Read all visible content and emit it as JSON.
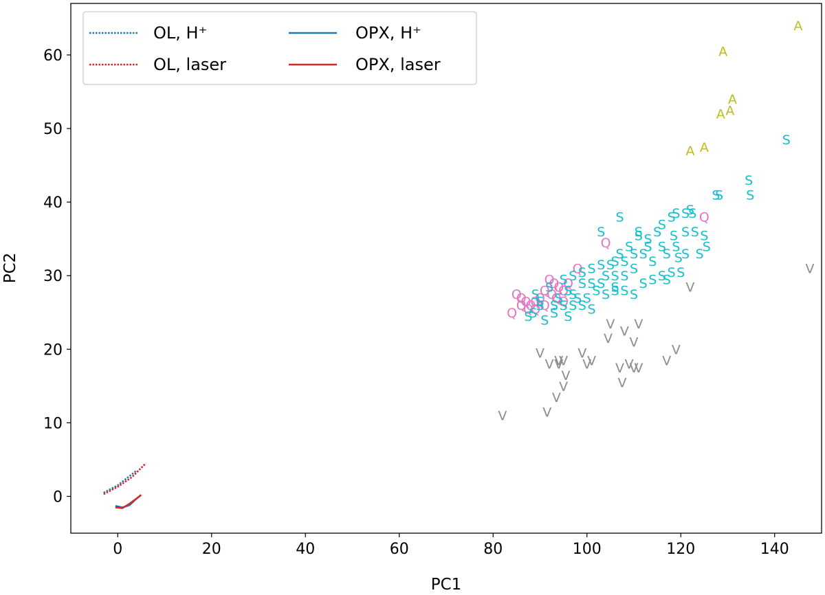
{
  "chart_data": {
    "type": "scatter",
    "title": "",
    "xlabel": "PC1",
    "ylabel": "PC2",
    "xlim": [
      -10,
      150
    ],
    "ylim": [
      -5,
      67
    ],
    "xticks": [
      0,
      20,
      40,
      60,
      80,
      100,
      120,
      140
    ],
    "yticks": [
      0,
      10,
      20,
      30,
      40,
      50,
      60
    ],
    "grid": false,
    "legend": {
      "location": "upper-left",
      "columns": 2,
      "entries": [
        {
          "label": "OL, H⁺",
          "color": "#1f77b4",
          "style": "dotted"
        },
        {
          "label": "OPX, H⁺",
          "color": "#1f77b4",
          "style": "solid"
        },
        {
          "label": "OL, laser",
          "color": "#d62728",
          "style": "dotted"
        },
        {
          "label": "OPX, laser",
          "color": "#d62728",
          "style": "solid"
        }
      ]
    },
    "marker_series": [
      {
        "marker": "A",
        "color": "#bcbd22",
        "points": [
          [
            145,
            64
          ],
          [
            129,
            60.5
          ],
          [
            131,
            54
          ],
          [
            128.5,
            52
          ],
          [
            130.5,
            52.5
          ],
          [
            125,
            47.5
          ],
          [
            122,
            47
          ]
        ]
      },
      {
        "marker": "V",
        "color": "#8c8c8c",
        "points": [
          [
            147.5,
            31
          ],
          [
            122,
            28.5
          ],
          [
            105,
            23.5
          ],
          [
            111,
            23.5
          ],
          [
            108,
            22.5
          ],
          [
            104.5,
            21.5
          ],
          [
            110,
            21
          ],
          [
            119,
            20
          ],
          [
            90,
            19.5
          ],
          [
            99,
            19.5
          ],
          [
            94,
            18.5
          ],
          [
            95,
            18.5
          ],
          [
            101,
            18.5
          ],
          [
            92,
            18
          ],
          [
            94,
            18
          ],
          [
            100,
            18
          ],
          [
            117,
            18.5
          ],
          [
            109,
            18
          ],
          [
            107,
            17.5
          ],
          [
            110,
            17.5
          ],
          [
            111,
            17.5
          ],
          [
            95.5,
            16.5
          ],
          [
            107.5,
            15.5
          ],
          [
            95,
            15
          ],
          [
            93.5,
            13.5
          ],
          [
            82,
            11
          ],
          [
            91.5,
            11.5
          ]
        ]
      },
      {
        "marker": "Q",
        "color": "#e377c2",
        "points": [
          [
            125,
            38
          ],
          [
            104,
            34.5
          ],
          [
            98,
            31
          ],
          [
            92,
            29.5
          ],
          [
            93,
            29
          ],
          [
            94,
            28.5
          ],
          [
            95,
            28
          ],
          [
            96,
            29
          ],
          [
            91,
            28
          ],
          [
            92.5,
            27.5
          ],
          [
            93.5,
            27
          ],
          [
            95,
            26.5
          ],
          [
            85,
            27.5
          ],
          [
            86,
            27
          ],
          [
            87,
            26.5
          ],
          [
            88,
            26
          ],
          [
            89,
            26.5
          ],
          [
            90,
            27
          ],
          [
            86,
            26
          ],
          [
            87.5,
            25.5
          ],
          [
            84,
            25
          ],
          [
            89,
            25.5
          ],
          [
            91,
            26
          ]
        ]
      },
      {
        "marker": "S",
        "color": "#17becf",
        "points": [
          [
            142.5,
            48.5
          ],
          [
            134.5,
            43
          ],
          [
            134.8,
            41
          ],
          [
            127.5,
            41
          ],
          [
            128.2,
            41
          ],
          [
            122,
            39
          ],
          [
            121,
            38.5
          ],
          [
            119,
            38.5
          ],
          [
            122.5,
            38.5
          ],
          [
            118,
            38
          ],
          [
            118.5,
            35.5
          ],
          [
            119,
            34
          ],
          [
            125,
            35.5
          ],
          [
            125.5,
            34
          ],
          [
            124,
            33
          ],
          [
            119.5,
            32.5
          ],
          [
            117,
            33
          ],
          [
            113,
            34
          ],
          [
            115,
            36
          ],
          [
            111,
            36
          ],
          [
            113,
            35
          ],
          [
            116,
            34
          ],
          [
            112,
            33
          ],
          [
            114,
            32
          ],
          [
            110,
            33
          ],
          [
            108,
            32
          ],
          [
            110,
            31
          ],
          [
            106,
            32
          ],
          [
            108,
            30
          ],
          [
            106,
            30
          ],
          [
            104,
            30
          ],
          [
            106,
            28.5
          ],
          [
            103,
            29
          ],
          [
            101,
            29
          ],
          [
            99,
            29
          ],
          [
            102,
            28
          ],
          [
            100,
            27
          ],
          [
            98,
            27
          ],
          [
            96,
            28
          ],
          [
            97,
            26
          ],
          [
            95,
            26
          ],
          [
            93,
            25
          ],
          [
            94,
            27
          ],
          [
            90,
            26
          ],
          [
            88.5,
            25
          ],
          [
            87.5,
            24.5
          ],
          [
            91,
            24
          ],
          [
            90,
            26.5
          ],
          [
            89,
            27.5
          ],
          [
            92,
            28.5
          ],
          [
            95,
            29.5
          ],
          [
            97,
            30
          ],
          [
            99,
            30.5
          ],
          [
            101,
            31
          ],
          [
            103,
            31.5
          ],
          [
            105,
            31.5
          ],
          [
            107,
            33
          ],
          [
            109,
            34
          ],
          [
            111,
            35.5
          ],
          [
            103,
            36
          ],
          [
            107,
            38
          ],
          [
            116,
            37
          ],
          [
            121,
            36
          ],
          [
            123,
            36
          ],
          [
            112,
            29
          ],
          [
            114,
            29.5
          ],
          [
            116,
            30
          ],
          [
            118,
            30.5
          ],
          [
            120,
            30.5
          ],
          [
            108,
            28
          ],
          [
            106,
            28
          ],
          [
            110,
            27.5
          ],
          [
            104,
            27.5
          ],
          [
            99,
            26
          ],
          [
            97,
            27.5
          ],
          [
            93,
            26
          ],
          [
            96,
            24.5
          ],
          [
            101,
            25.5
          ],
          [
            117,
            29.5
          ],
          [
            121,
            33
          ]
        ]
      }
    ],
    "lines": [
      {
        "series": "OL, H⁺",
        "color": "#1f77b4",
        "style": "dotted",
        "points": [
          [
            -3,
            0.5
          ],
          [
            0,
            1.5
          ],
          [
            2,
            2.5
          ],
          [
            4,
            3.5
          ]
        ]
      },
      {
        "series": "OL, laser",
        "color": "#d62728",
        "style": "dotted",
        "points": [
          [
            -3,
            0.3
          ],
          [
            0,
            1.3
          ],
          [
            3,
            2.6
          ],
          [
            6,
            4.5
          ]
        ]
      },
      {
        "series": "OPX, H⁺",
        "color": "#1f77b4",
        "style": "solid",
        "points": [
          [
            -0.5,
            -1.3
          ],
          [
            1,
            -1.5
          ],
          [
            2.5,
            -1.2
          ],
          [
            4,
            -0.3
          ]
        ]
      },
      {
        "series": "OPX, laser",
        "color": "#d62728",
        "style": "solid",
        "points": [
          [
            -0.5,
            -1.5
          ],
          [
            1,
            -1.6
          ],
          [
            2.5,
            -1
          ],
          [
            4,
            -0.3
          ],
          [
            5,
            0.2
          ]
        ]
      }
    ]
  }
}
